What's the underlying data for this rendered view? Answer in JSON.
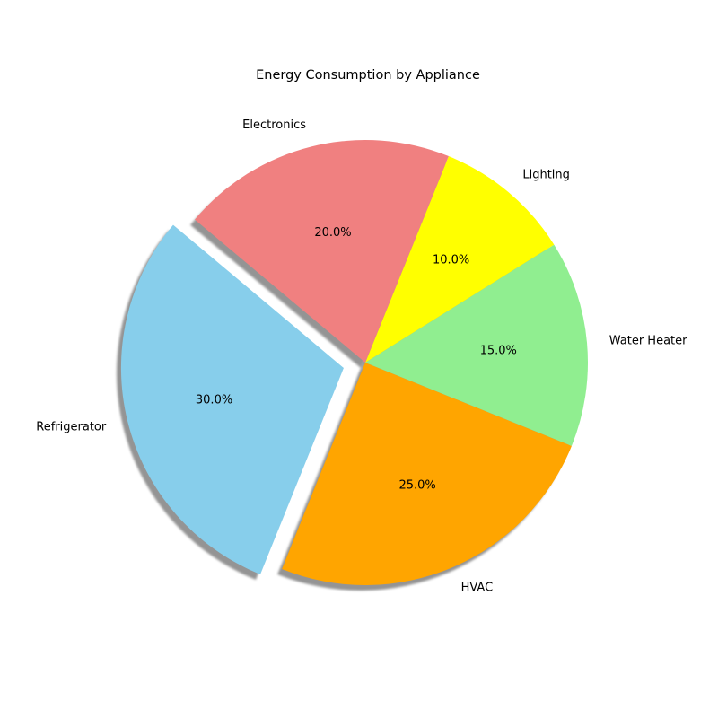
{
  "chart_data": {
    "type": "pie",
    "title": "Energy Consumption by Appliance",
    "categories": [
      "Refrigerator",
      "HVAC",
      "Water Heater",
      "Lighting",
      "Electronics"
    ],
    "values": [
      30,
      25,
      15,
      10,
      20
    ],
    "percent_labels": [
      "30.0%",
      "25.0%",
      "15.0%",
      "10.0%",
      "20.0%"
    ],
    "colors": [
      "#87CEEB",
      "#FFA500",
      "#90EE90",
      "#FFFF00",
      "#F08080"
    ],
    "start_angle_deg": 140,
    "direction": "counterclockwise",
    "exploded": [
      "Refrigerator"
    ],
    "shadow": true
  }
}
